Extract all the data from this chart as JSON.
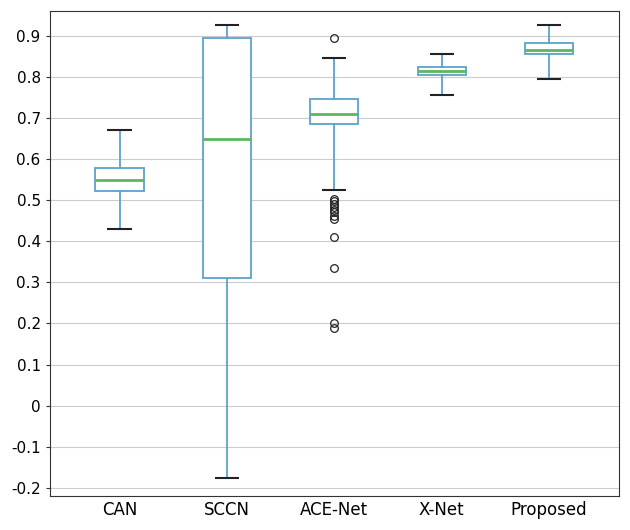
{
  "categories": [
    "CAN",
    "SCCN",
    "ACE-Net",
    "X-Net",
    "Proposed"
  ],
  "boxes": [
    {
      "label": "CAN",
      "whislo": 0.43,
      "q1": 0.522,
      "med": 0.55,
      "q3": 0.578,
      "whishi": 0.67,
      "fliers": []
    },
    {
      "label": "SCCN",
      "whislo": -0.175,
      "q1": 0.31,
      "med": 0.65,
      "q3": 0.895,
      "whishi": 0.925,
      "fliers": []
    },
    {
      "label": "ACE-Net",
      "whislo": 0.525,
      "q1": 0.685,
      "med": 0.71,
      "q3": 0.745,
      "whishi": 0.845,
      "fliers": [
        0.895,
        0.19,
        0.2,
        0.335,
        0.41,
        0.455,
        0.462,
        0.47,
        0.477,
        0.483,
        0.49,
        0.497,
        0.503
      ]
    },
    {
      "label": "X-Net",
      "whislo": 0.755,
      "q1": 0.805,
      "med": 0.815,
      "q3": 0.825,
      "whishi": 0.855,
      "fliers": []
    },
    {
      "label": "Proposed",
      "whislo": 0.795,
      "q1": 0.855,
      "med": 0.866,
      "q3": 0.882,
      "whishi": 0.925,
      "fliers": []
    }
  ],
  "ylim": [
    -0.22,
    0.96
  ],
  "yticks": [
    -0.2,
    -0.1,
    0.0,
    0.1,
    0.2,
    0.3,
    0.4,
    0.5,
    0.6,
    0.7,
    0.8,
    0.9
  ],
  "box_color": "#5ba3c9",
  "median_color": "#5cb85c",
  "cap_color": "#222222",
  "flier_edgecolor": "#222222",
  "background_color": "#ffffff",
  "grid_color": "#cccccc",
  "spine_color": "#333333",
  "box_width": 0.45,
  "tick_fontsize": 11,
  "label_fontsize": 12
}
